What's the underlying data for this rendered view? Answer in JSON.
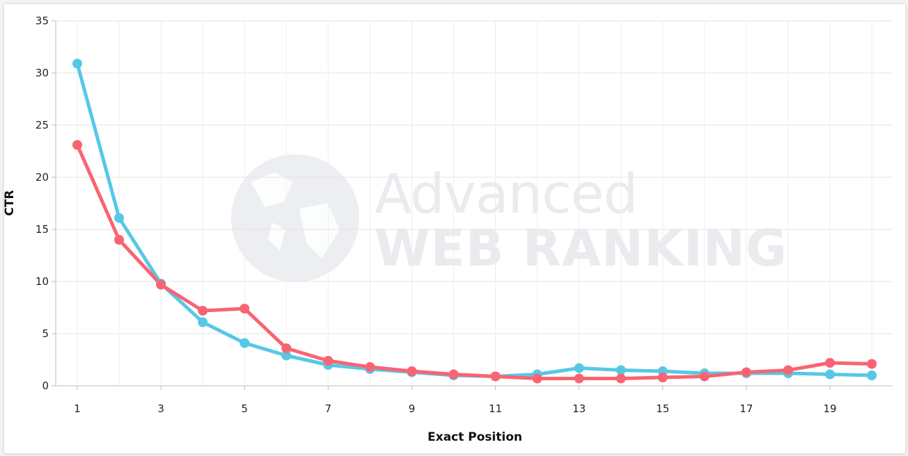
{
  "chart_data": {
    "type": "line",
    "xlabel": "Exact Position",
    "ylabel": "CTR",
    "x": [
      1,
      2,
      3,
      4,
      5,
      6,
      7,
      8,
      9,
      10,
      11,
      12,
      13,
      14,
      15,
      16,
      17,
      18,
      19,
      20
    ],
    "xlim": [
      1,
      20
    ],
    "xticks": [
      "1",
      "3",
      "5",
      "7",
      "9",
      "11",
      "13",
      "15",
      "17",
      "19"
    ],
    "ylim": [
      0,
      35
    ],
    "yticks": [
      "0",
      "5",
      "10",
      "15",
      "20",
      "25",
      "30",
      "35"
    ],
    "grid": true,
    "series": [
      {
        "color": "#56c8e6",
        "values": [
          30.9,
          16.1,
          9.8,
          6.1,
          4.1,
          2.9,
          2.0,
          1.6,
          1.3,
          1.0,
          0.9,
          1.1,
          1.7,
          1.5,
          1.4,
          1.2,
          1.2,
          1.2,
          1.1,
          1.0
        ]
      },
      {
        "color": "#f96472",
        "values": [
          23.1,
          14.0,
          9.7,
          7.2,
          7.4,
          3.6,
          2.4,
          1.8,
          1.4,
          1.1,
          0.9,
          0.7,
          0.7,
          0.7,
          0.8,
          0.9,
          1.3,
          1.5,
          2.2,
          2.1
        ]
      }
    ]
  },
  "watermark": {
    "line1": "Advanced",
    "line2": "WEB RANKING"
  }
}
